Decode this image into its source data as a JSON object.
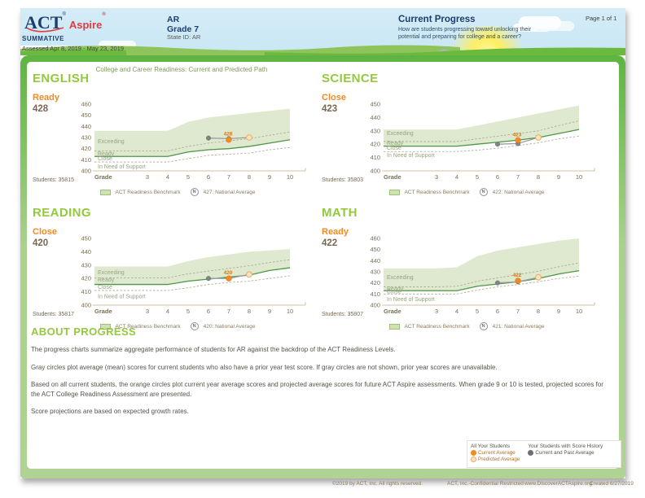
{
  "header": {
    "logo_act": "ACT",
    "logo_aspire": "Aspire",
    "program": "SUMMATIVE",
    "assessed": "Assessed Apr 8, 2019 - May 23, 2019",
    "org": "AR",
    "grade": "Grade 7",
    "state_id": "State ID: AR",
    "section_title": "Current Progress",
    "section_desc": "How are students progressing toward unlocking their potential and preparing for college and a career?",
    "page": "Page 1 of 1"
  },
  "chart_title": "College and Career Readiness: Current and Predicted Path",
  "colors": {
    "navy": "#1e3d6e",
    "red": "#e23b3f",
    "green_title": "#95c93d",
    "orange": "#f18a21",
    "orange_dark": "#d9771a",
    "band": "#dfe9cf",
    "benchmark_line": "#4c9743",
    "dashed": "#a3ab85",
    "zone_text": "#9aa284",
    "axis_text": "#7c6f54",
    "axis_line": "#c9ae84",
    "gray_point": "#808486",
    "gray_line": "#9b9da0",
    "predicted_fill": "#fbe3c1",
    "predicted_stroke": "#edab62"
  },
  "chart_data": [
    {
      "type": "area",
      "subject": "ENGLISH",
      "level": "Ready",
      "score": 428,
      "students": "Students: 35815",
      "benchmark_label": "ACT Readiness Benchmark",
      "national_average_label": "427: National Average",
      "national_average_icon": "N",
      "x_label": "Grade",
      "grades": [
        3,
        4,
        5,
        6,
        7,
        8,
        9,
        10
      ],
      "ylim": [
        400,
        460
      ],
      "yticks": [
        400,
        410,
        420,
        430,
        440,
        450,
        460
      ],
      "band_top": [
        436,
        436,
        444,
        448,
        450,
        452,
        454,
        456
      ],
      "benchmark": [
        413,
        413,
        417,
        419,
        420,
        422,
        425,
        428
      ],
      "upper_boundary": [
        418,
        418,
        422,
        425,
        427,
        429,
        432,
        435
      ],
      "lower_boundary": [
        408,
        408,
        411,
        414,
        415,
        416,
        419,
        421
      ],
      "gray_points": [
        {
          "grade": 6,
          "value": 429.5
        },
        {
          "grade": 7,
          "value": 429
        }
      ],
      "current_point": {
        "grade": 7,
        "value": 428
      },
      "predicted_point": {
        "grade": 8,
        "value": 430
      },
      "point_label": "428",
      "zones": [
        {
          "label": "Exceeding",
          "y": 426.5
        },
        {
          "label": "Ready",
          "y": 415.5
        },
        {
          "label": "Close",
          "y": 411
        },
        {
          "label": "In Need of Support",
          "y": 403.5
        }
      ]
    },
    {
      "type": "area",
      "subject": "SCIENCE",
      "level": "Close",
      "score": 423,
      "students": "Students: 35803",
      "benchmark_label": "ACT Readiness Benchmark",
      "national_average_label": "422: National Average",
      "national_average_icon": "N",
      "x_label": "Grade",
      "grades": [
        3,
        4,
        5,
        6,
        7,
        8,
        9,
        10
      ],
      "ylim": [
        400,
        450
      ],
      "yticks": [
        400,
        410,
        420,
        430,
        440,
        450
      ],
      "band_top": [
        431,
        431,
        434,
        437,
        440,
        443,
        446,
        449
      ],
      "benchmark": [
        418.5,
        418.5,
        420,
        421.5,
        423,
        425,
        428,
        431
      ],
      "upper_boundary": [
        422,
        422,
        424,
        426,
        428,
        430,
        434,
        437.5
      ],
      "lower_boundary": [
        414.5,
        414.5,
        415.5,
        417,
        419,
        421,
        424,
        426
      ],
      "gray_points": [
        {
          "grade": 6,
          "value": 420
        },
        {
          "grade": 7,
          "value": 420.5
        }
      ],
      "current_point": {
        "grade": 7,
        "value": 423
      },
      "predicted_point": {
        "grade": 8,
        "value": 425
      },
      "point_label": "423",
      "zones": [
        {
          "label": "Exceeding",
          "y": 428
        },
        {
          "label": "Ready",
          "y": 420.8
        },
        {
          "label": "Close",
          "y": 417
        },
        {
          "label": "In Need of Support",
          "y": 411.5
        }
      ]
    },
    {
      "type": "area",
      "subject": "READING",
      "level": "Close",
      "score": 420,
      "students": "Students: 35817",
      "benchmark_label": "ACT Readiness Benchmark",
      "national_average_label": "420: National Average",
      "national_average_icon": "N",
      "x_label": "Grade",
      "grades": [
        3,
        4,
        5,
        6,
        7,
        8,
        9,
        10
      ],
      "ylim": [
        400,
        450
      ],
      "yticks": [
        400,
        410,
        420,
        430,
        440,
        450
      ],
      "band_top": [
        429,
        429,
        433,
        436,
        438,
        440,
        441,
        442
      ],
      "benchmark": [
        415.5,
        415.5,
        418,
        419.5,
        421,
        422.5,
        426,
        428
      ],
      "upper_boundary": [
        420.5,
        420.5,
        423.5,
        425.5,
        427.5,
        429.5,
        432,
        434
      ],
      "lower_boundary": [
        411,
        411,
        413,
        415.5,
        417,
        418,
        420,
        422
      ],
      "gray_points": [
        {
          "grade": 6,
          "value": 420
        },
        {
          "grade": 7,
          "value": 420
        }
      ],
      "current_point": {
        "grade": 7,
        "value": 420
      },
      "predicted_point": {
        "grade": 8,
        "value": 423
      },
      "point_label": "420",
      "zones": [
        {
          "label": "Exceeding",
          "y": 424.5
        },
        {
          "label": "Ready",
          "y": 418.8
        },
        {
          "label": "Close",
          "y": 413.5
        },
        {
          "label": "In Need of Support",
          "y": 406.5
        }
      ]
    },
    {
      "type": "area",
      "subject": "MATH",
      "level": "Ready",
      "score": 422,
      "students": "Students: 35807",
      "benchmark_label": "ACT Readiness Benchmark",
      "national_average_label": "421: National Average",
      "national_average_icon": "N",
      "x_label": "Grade",
      "grades": [
        3,
        4,
        5,
        6,
        7,
        8,
        9,
        10
      ],
      "ylim": [
        400,
        460
      ],
      "yticks": [
        400,
        410,
        420,
        430,
        440,
        450,
        460
      ],
      "band_top": [
        433,
        434,
        444,
        449,
        452,
        455,
        458,
        460
      ],
      "benchmark": [
        413,
        413,
        417,
        419,
        421,
        424,
        428,
        431
      ],
      "upper_boundary": [
        416.5,
        417,
        421.5,
        424.5,
        427.5,
        430.5,
        434.5,
        438
      ],
      "lower_boundary": [
        410,
        410,
        413.5,
        416.5,
        418.5,
        421,
        424,
        426
      ],
      "gray_points": [
        {
          "grade": 6,
          "value": 420
        },
        {
          "grade": 7,
          "value": 421
        }
      ],
      "current_point": {
        "grade": 7,
        "value": 422
      },
      "predicted_point": {
        "grade": 8,
        "value": 425
      },
      "point_label": "422",
      "zones": [
        {
          "label": "Exceeding",
          "y": 425
        },
        {
          "label": "Ready",
          "y": 414.8
        },
        {
          "label": "Close",
          "y": 412
        },
        {
          "label": "In Need of Support",
          "y": 405
        }
      ]
    }
  ],
  "about": {
    "title": "ABOUT PROGRESS",
    "paragraphs": [
      "The progress charts summarize aggregate performance of students for AR against the backdrop of the ACT Readiness Levels.",
      "Gray circles plot average (mean) scores for current students who also have a prior year test score. If gray circles are not shown, prior year scores are unavailable.",
      "Based on all current students, the orange circles plot current year average scores and projected average scores for future ACT Aspire assessments. When grade 9 or 10 is tested, projected scores for the ACT College Readiness Assessment are presented.",
      "Score projections are based on expected growth rates."
    ]
  },
  "bottom_legend": {
    "all_students_header": "All Your Students",
    "current_average": "Current Average",
    "predicted_average": "Predicted Average",
    "history_header": "Your Students with Score History",
    "current_past_average": "Current and Past Average"
  },
  "footer": {
    "copyright": "©2019 by ACT, Inc. All rights reserved.",
    "confidential": "ACT, Inc.-Confidential Restricted",
    "url": "www.DiscoverACTAspire.org",
    "created": "Created 6/27/2019"
  }
}
